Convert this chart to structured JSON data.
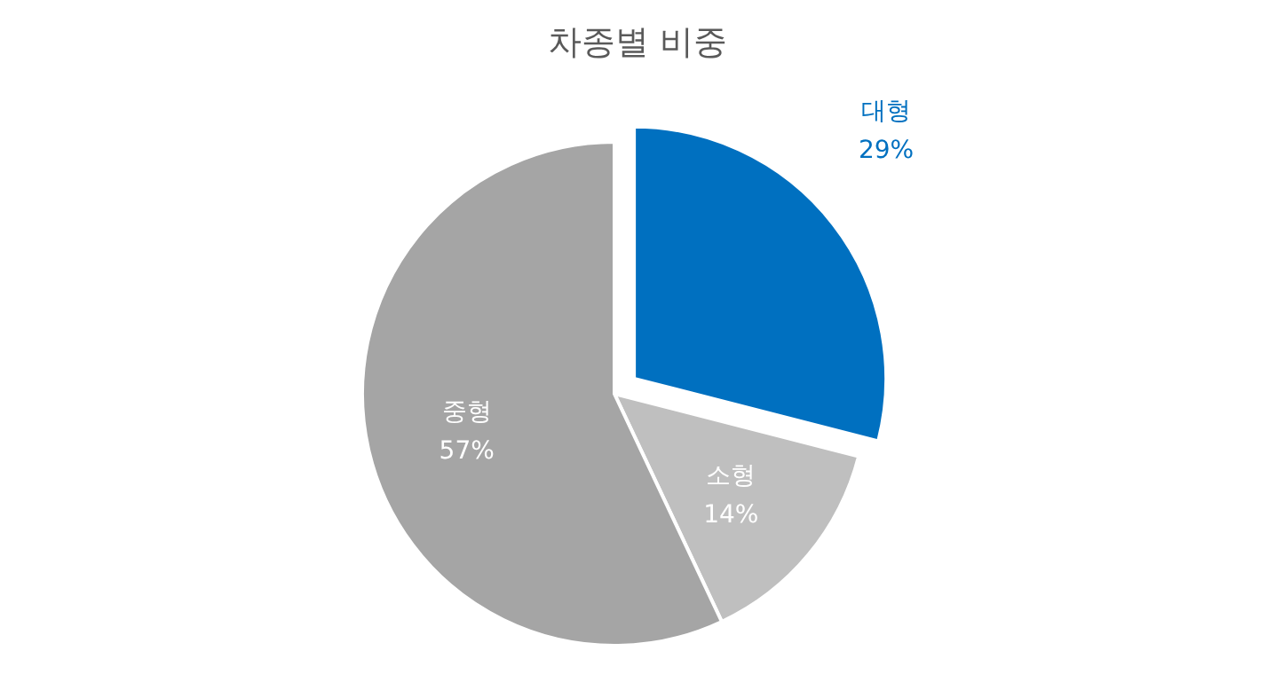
{
  "chart_data": {
    "type": "pie",
    "title": "차종별 비중",
    "categories": [
      "대형",
      "소형",
      "중형"
    ],
    "values": [
      29,
      14,
      57
    ],
    "value_labels": [
      "29%",
      "14%",
      "57%"
    ],
    "colors": [
      "#0070c0",
      "#bfbfbf",
      "#a5a5a5"
    ],
    "legend": false
  }
}
